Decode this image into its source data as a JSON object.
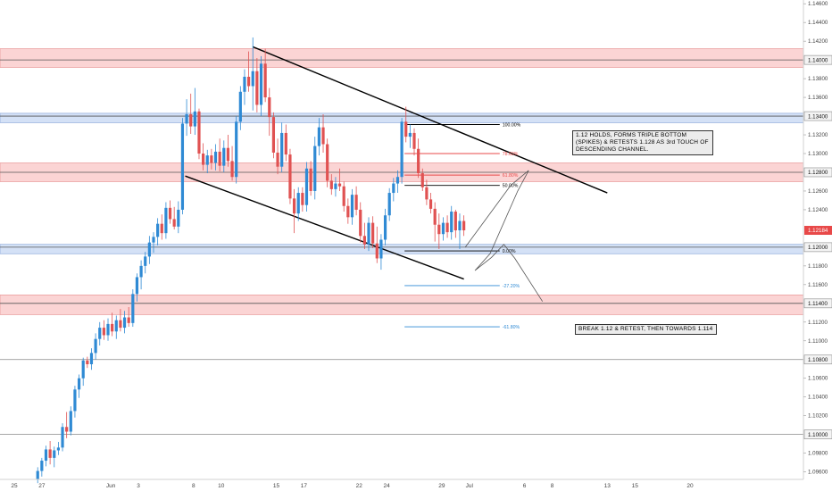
{
  "chart_data": {
    "type": "candlestick",
    "title": "",
    "symbol_price": "1.12184",
    "colors": {
      "up": "#2f8ad4",
      "down": "#e05252",
      "resistance_fill": "#fbd4d4",
      "resistance_line": "#e58a8a",
      "support_fill": "#d4e1f6",
      "support_line": "#7f9fd6",
      "fib_black": "#000000",
      "fib_red": "#e84848",
      "fib_blue": "#2f8ad4",
      "price_tag": "#e84848"
    },
    "y_axis": {
      "range": [
        1.0952,
        1.1464
      ],
      "tick_labels": [
        "1.14600",
        "1.14400",
        "1.14200",
        "1.13800",
        "1.13600",
        "1.13200",
        "1.13000",
        "1.12600",
        "1.12400",
        "1.11800",
        "1.11600",
        "1.11200",
        "1.11000",
        "1.10600",
        "1.10400",
        "1.10200",
        "1.09800",
        "1.09600"
      ],
      "tick_values": [
        1.146,
        1.144,
        1.142,
        1.138,
        1.136,
        1.132,
        1.13,
        1.126,
        1.124,
        1.118,
        1.116,
        1.112,
        1.11,
        1.106,
        1.104,
        1.102,
        1.098,
        1.096
      ],
      "highlight_labels": [
        "1.14000",
        "1.13400",
        "1.12800",
        "1.12000",
        "1.11400",
        "1.10800",
        "1.10000"
      ],
      "highlight_values": [
        1.14,
        1.134,
        1.128,
        1.12,
        1.114,
        1.108,
        1.1
      ]
    },
    "x_axis": {
      "labels": [
        "25",
        "27",
        "Jun",
        "3",
        "8",
        "10",
        "15",
        "17",
        "22",
        "24",
        "29",
        "Jul",
        "6",
        "8",
        "13",
        "15",
        "20"
      ],
      "positions_index": [
        -1,
        1,
        6,
        8,
        12,
        14,
        18,
        20,
        24,
        26,
        30,
        32,
        36,
        38,
        42,
        44,
        48
      ]
    },
    "zones": [
      {
        "kind": "resistance",
        "low": 1.1392,
        "high": 1.1412,
        "level": 1.14
      },
      {
        "kind": "support",
        "low": 1.1333,
        "high": 1.1343,
        "level": 1.134
      },
      {
        "kind": "resistance",
        "low": 1.127,
        "high": 1.129,
        "level": 1.128
      },
      {
        "kind": "support",
        "low": 1.1193,
        "high": 1.1203,
        "level": 1.12
      },
      {
        "kind": "resistance",
        "low": 1.1128,
        "high": 1.1149,
        "level": 1.114
      }
    ],
    "horizontal_lines": [
      1.108,
      1.1
    ],
    "candles": [
      {
        "x": 0.7,
        "o": 1.0952,
        "h": 1.0965,
        "l": 1.0948,
        "c": 1.0961
      },
      {
        "x": 1.0,
        "o": 1.0961,
        "h": 1.0975,
        "l": 1.0955,
        "c": 1.0972
      },
      {
        "x": 1.3,
        "o": 1.0972,
        "h": 1.0988,
        "l": 1.0966,
        "c": 1.0984
      },
      {
        "x": 1.6,
        "o": 1.0984,
        "h": 1.0993,
        "l": 1.0968,
        "c": 1.0975
      },
      {
        "x": 1.9,
        "o": 1.0975,
        "h": 1.0987,
        "l": 1.0965,
        "c": 1.0983
      },
      {
        "x": 2.2,
        "o": 1.0983,
        "h": 1.0992,
        "l": 1.0978,
        "c": 1.0986
      },
      {
        "x": 2.5,
        "o": 1.0986,
        "h": 1.1012,
        "l": 1.0982,
        "c": 1.1008
      },
      {
        "x": 2.8,
        "o": 1.1008,
        "h": 1.1024,
        "l": 1.0996,
        "c": 1.1003
      },
      {
        "x": 3.1,
        "o": 1.1003,
        "h": 1.103,
        "l": 1.0999,
        "c": 1.1025
      },
      {
        "x": 3.4,
        "o": 1.1025,
        "h": 1.1052,
        "l": 1.1018,
        "c": 1.1048
      },
      {
        "x": 3.7,
        "o": 1.1048,
        "h": 1.1064,
        "l": 1.1039,
        "c": 1.106
      },
      {
        "x": 4.0,
        "o": 1.106,
        "h": 1.1082,
        "l": 1.1052,
        "c": 1.1079
      },
      {
        "x": 4.3,
        "o": 1.1079,
        "h": 1.1083,
        "l": 1.1071,
        "c": 1.1075
      },
      {
        "x": 4.6,
        "o": 1.1075,
        "h": 1.1092,
        "l": 1.1069,
        "c": 1.1087
      },
      {
        "x": 4.9,
        "o": 1.1087,
        "h": 1.1108,
        "l": 1.108,
        "c": 1.1102
      },
      {
        "x": 5.2,
        "o": 1.1102,
        "h": 1.112,
        "l": 1.1095,
        "c": 1.1114
      },
      {
        "x": 5.5,
        "o": 1.1114,
        "h": 1.1122,
        "l": 1.1101,
        "c": 1.1106
      },
      {
        "x": 5.8,
        "o": 1.1106,
        "h": 1.1124,
        "l": 1.11,
        "c": 1.1118
      },
      {
        "x": 6.1,
        "o": 1.1118,
        "h": 1.113,
        "l": 1.1105,
        "c": 1.111
      },
      {
        "x": 6.4,
        "o": 1.111,
        "h": 1.1127,
        "l": 1.1102,
        "c": 1.1122
      },
      {
        "x": 6.7,
        "o": 1.1122,
        "h": 1.1134,
        "l": 1.111,
        "c": 1.1114
      },
      {
        "x": 7.0,
        "o": 1.1114,
        "h": 1.1132,
        "l": 1.1108,
        "c": 1.1125
      },
      {
        "x": 7.3,
        "o": 1.1125,
        "h": 1.1136,
        "l": 1.1115,
        "c": 1.1119
      },
      {
        "x": 7.6,
        "o": 1.1119,
        "h": 1.1155,
        "l": 1.1115,
        "c": 1.115
      },
      {
        "x": 7.9,
        "o": 1.115,
        "h": 1.1172,
        "l": 1.1142,
        "c": 1.1168
      },
      {
        "x": 8.2,
        "o": 1.1168,
        "h": 1.1186,
        "l": 1.1155,
        "c": 1.118
      },
      {
        "x": 8.5,
        "o": 1.118,
        "h": 1.1195,
        "l": 1.1172,
        "c": 1.119
      },
      {
        "x": 8.8,
        "o": 1.119,
        "h": 1.1212,
        "l": 1.1182,
        "c": 1.1205
      },
      {
        "x": 9.1,
        "o": 1.1205,
        "h": 1.1216,
        "l": 1.1194,
        "c": 1.1211
      },
      {
        "x": 9.4,
        "o": 1.1211,
        "h": 1.1231,
        "l": 1.1202,
        "c": 1.1225
      },
      {
        "x": 9.7,
        "o": 1.1225,
        "h": 1.1235,
        "l": 1.1208,
        "c": 1.1215
      },
      {
        "x": 10.0,
        "o": 1.1215,
        "h": 1.1248,
        "l": 1.1209,
        "c": 1.1242
      },
      {
        "x": 10.3,
        "o": 1.1242,
        "h": 1.125,
        "l": 1.1225,
        "c": 1.123
      },
      {
        "x": 10.6,
        "o": 1.123,
        "h": 1.1243,
        "l": 1.1219,
        "c": 1.1222
      },
      {
        "x": 10.9,
        "o": 1.1222,
        "h": 1.1249,
        "l": 1.1215,
        "c": 1.124
      },
      {
        "x": 11.2,
        "o": 1.124,
        "h": 1.1338,
        "l": 1.1235,
        "c": 1.1332
      },
      {
        "x": 11.5,
        "o": 1.1332,
        "h": 1.1358,
        "l": 1.1319,
        "c": 1.1342
      },
      {
        "x": 11.8,
        "o": 1.1342,
        "h": 1.1364,
        "l": 1.1321,
        "c": 1.1329
      },
      {
        "x": 12.1,
        "o": 1.1329,
        "h": 1.137,
        "l": 1.132,
        "c": 1.1345
      },
      {
        "x": 12.4,
        "o": 1.1345,
        "h": 1.1348,
        "l": 1.1294,
        "c": 1.13
      },
      {
        "x": 12.7,
        "o": 1.13,
        "h": 1.1311,
        "l": 1.1282,
        "c": 1.1288
      },
      {
        "x": 13.0,
        "o": 1.1288,
        "h": 1.1304,
        "l": 1.1279,
        "c": 1.1298
      },
      {
        "x": 13.3,
        "o": 1.1298,
        "h": 1.1305,
        "l": 1.1283,
        "c": 1.129
      },
      {
        "x": 13.6,
        "o": 1.129,
        "h": 1.131,
        "l": 1.1282,
        "c": 1.1302
      },
      {
        "x": 13.9,
        "o": 1.1302,
        "h": 1.1316,
        "l": 1.1281,
        "c": 1.1287
      },
      {
        "x": 14.2,
        "o": 1.1287,
        "h": 1.1314,
        "l": 1.128,
        "c": 1.1306
      },
      {
        "x": 14.5,
        "o": 1.1306,
        "h": 1.132,
        "l": 1.1286,
        "c": 1.1292
      },
      {
        "x": 14.8,
        "o": 1.1292,
        "h": 1.1308,
        "l": 1.1271,
        "c": 1.1275
      },
      {
        "x": 15.1,
        "o": 1.1275,
        "h": 1.134,
        "l": 1.1268,
        "c": 1.1334
      },
      {
        "x": 15.4,
        "o": 1.1334,
        "h": 1.1372,
        "l": 1.1325,
        "c": 1.1366
      },
      {
        "x": 15.7,
        "o": 1.1366,
        "h": 1.139,
        "l": 1.1352,
        "c": 1.1382
      },
      {
        "x": 16.0,
        "o": 1.1382,
        "h": 1.1409,
        "l": 1.1366,
        "c": 1.1372
      },
      {
        "x": 16.3,
        "o": 1.1372,
        "h": 1.1424,
        "l": 1.1346,
        "c": 1.1388
      },
      {
        "x": 16.6,
        "o": 1.1388,
        "h": 1.1402,
        "l": 1.1344,
        "c": 1.1352
      },
      {
        "x": 16.9,
        "o": 1.1352,
        "h": 1.1404,
        "l": 1.134,
        "c": 1.1396
      },
      {
        "x": 17.2,
        "o": 1.1396,
        "h": 1.1412,
        "l": 1.1355,
        "c": 1.136
      },
      {
        "x": 17.5,
        "o": 1.136,
        "h": 1.137,
        "l": 1.1319,
        "c": 1.1339
      },
      {
        "x": 17.8,
        "o": 1.1339,
        "h": 1.1344,
        "l": 1.1295,
        "c": 1.1301
      },
      {
        "x": 18.1,
        "o": 1.1301,
        "h": 1.1316,
        "l": 1.1278,
        "c": 1.1286
      },
      {
        "x": 18.4,
        "o": 1.1286,
        "h": 1.1333,
        "l": 1.128,
        "c": 1.1322
      },
      {
        "x": 18.7,
        "o": 1.1322,
        "h": 1.1331,
        "l": 1.1292,
        "c": 1.1299
      },
      {
        "x": 19.0,
        "o": 1.1299,
        "h": 1.1305,
        "l": 1.1246,
        "c": 1.1252
      },
      {
        "x": 19.3,
        "o": 1.1252,
        "h": 1.1262,
        "l": 1.1215,
        "c": 1.1236
      },
      {
        "x": 19.6,
        "o": 1.1236,
        "h": 1.1264,
        "l": 1.1228,
        "c": 1.1258
      },
      {
        "x": 19.9,
        "o": 1.1258,
        "h": 1.1264,
        "l": 1.1238,
        "c": 1.1245
      },
      {
        "x": 20.2,
        "o": 1.1245,
        "h": 1.1291,
        "l": 1.1238,
        "c": 1.1284
      },
      {
        "x": 20.5,
        "o": 1.1284,
        "h": 1.1292,
        "l": 1.1255,
        "c": 1.126
      },
      {
        "x": 20.8,
        "o": 1.126,
        "h": 1.1318,
        "l": 1.1251,
        "c": 1.1308
      },
      {
        "x": 21.1,
        "o": 1.1308,
        "h": 1.1338,
        "l": 1.1298,
        "c": 1.1328
      },
      {
        "x": 21.4,
        "o": 1.1328,
        "h": 1.1342,
        "l": 1.1301,
        "c": 1.131
      },
      {
        "x": 21.7,
        "o": 1.131,
        "h": 1.1316,
        "l": 1.1264,
        "c": 1.1271
      },
      {
        "x": 22.0,
        "o": 1.1271,
        "h": 1.1278,
        "l": 1.1256,
        "c": 1.1262
      },
      {
        "x": 22.3,
        "o": 1.1262,
        "h": 1.1275,
        "l": 1.1254,
        "c": 1.1268
      },
      {
        "x": 22.6,
        "o": 1.1268,
        "h": 1.1284,
        "l": 1.126,
        "c": 1.1265
      },
      {
        "x": 22.9,
        "o": 1.1265,
        "h": 1.127,
        "l": 1.1238,
        "c": 1.1244
      },
      {
        "x": 23.2,
        "o": 1.1244,
        "h": 1.1252,
        "l": 1.1225,
        "c": 1.1232
      },
      {
        "x": 23.5,
        "o": 1.1232,
        "h": 1.1262,
        "l": 1.1224,
        "c": 1.1256
      },
      {
        "x": 23.8,
        "o": 1.1256,
        "h": 1.1265,
        "l": 1.1234,
        "c": 1.124
      },
      {
        "x": 24.1,
        "o": 1.124,
        "h": 1.1248,
        "l": 1.1205,
        "c": 1.1212
      },
      {
        "x": 24.4,
        "o": 1.1212,
        "h": 1.1226,
        "l": 1.1198,
        "c": 1.1203
      },
      {
        "x": 24.7,
        "o": 1.1203,
        "h": 1.1232,
        "l": 1.1196,
        "c": 1.1226
      },
      {
        "x": 25.0,
        "o": 1.1226,
        "h": 1.1233,
        "l": 1.1199,
        "c": 1.1204
      },
      {
        "x": 25.3,
        "o": 1.1204,
        "h": 1.1222,
        "l": 1.1183,
        "c": 1.1188
      },
      {
        "x": 25.6,
        "o": 1.1188,
        "h": 1.1214,
        "l": 1.1176,
        "c": 1.1208
      },
      {
        "x": 25.9,
        "o": 1.1208,
        "h": 1.1241,
        "l": 1.1202,
        "c": 1.1234
      },
      {
        "x": 26.2,
        "o": 1.1234,
        "h": 1.1263,
        "l": 1.1228,
        "c": 1.1258
      },
      {
        "x": 26.5,
        "o": 1.1258,
        "h": 1.1274,
        "l": 1.1249,
        "c": 1.1268
      },
      {
        "x": 26.8,
        "o": 1.1268,
        "h": 1.1282,
        "l": 1.1258,
        "c": 1.1275
      },
      {
        "x": 27.1,
        "o": 1.1275,
        "h": 1.1338,
        "l": 1.1268,
        "c": 1.1334
      },
      {
        "x": 27.4,
        "o": 1.1334,
        "h": 1.135,
        "l": 1.1312,
        "c": 1.1318
      },
      {
        "x": 27.7,
        "o": 1.1318,
        "h": 1.1331,
        "l": 1.1306,
        "c": 1.1322
      },
      {
        "x": 28.0,
        "o": 1.1322,
        "h": 1.1327,
        "l": 1.1298,
        "c": 1.1305
      },
      {
        "x": 28.3,
        "o": 1.1305,
        "h": 1.1316,
        "l": 1.1274,
        "c": 1.1279
      },
      {
        "x": 28.6,
        "o": 1.1279,
        "h": 1.1284,
        "l": 1.126,
        "c": 1.1264
      },
      {
        "x": 28.9,
        "o": 1.1264,
        "h": 1.1272,
        "l": 1.1245,
        "c": 1.1251
      },
      {
        "x": 29.2,
        "o": 1.1251,
        "h": 1.1258,
        "l": 1.1236,
        "c": 1.1241
      },
      {
        "x": 29.5,
        "o": 1.1241,
        "h": 1.1248,
        "l": 1.1206,
        "c": 1.1224
      },
      {
        "x": 29.8,
        "o": 1.1224,
        "h": 1.1236,
        "l": 1.1198,
        "c": 1.1214
      },
      {
        "x": 30.1,
        "o": 1.1214,
        "h": 1.1232,
        "l": 1.1207,
        "c": 1.1226
      },
      {
        "x": 30.4,
        "o": 1.1226,
        "h": 1.1234,
        "l": 1.121,
        "c": 1.1216
      },
      {
        "x": 30.7,
        "o": 1.1216,
        "h": 1.1244,
        "l": 1.1208,
        "c": 1.1238
      },
      {
        "x": 31.0,
        "o": 1.1238,
        "h": 1.124,
        "l": 1.121,
        "c": 1.1218
      },
      {
        "x": 31.3,
        "o": 1.1218,
        "h": 1.1236,
        "l": 1.1198,
        "c": 1.1228
      },
      {
        "x": 31.6,
        "o": 1.1228,
        "h": 1.1234,
        "l": 1.1212,
        "c": 1.1218
      }
    ],
    "channel_lines": [
      {
        "from": [
          16.3,
          1.1414
        ],
        "to": [
          42.0,
          1.1258
        ]
      },
      {
        "from": [
          11.4,
          1.1276
        ],
        "to": [
          31.6,
          1.1166
        ]
      }
    ],
    "projection_path": [
      [
        31.7,
        1.12
      ],
      [
        35.0,
        1.1266
      ],
      [
        36.3,
        1.1282
      ],
      [
        35.5,
        1.126
      ],
      [
        33.5,
        1.1193
      ],
      [
        32.4,
        1.1175
      ],
      [
        33.6,
        1.1189
      ],
      [
        34.5,
        1.1203
      ],
      [
        35.3,
        1.1188
      ],
      [
        37.3,
        1.1142
      ]
    ],
    "fib_levels": [
      {
        "label": "100.00%",
        "price": 1.1331,
        "color": "fib_black"
      },
      {
        "label": "78.60%",
        "price": 1.13,
        "color": "fib_red"
      },
      {
        "label": "61.80%",
        "price": 1.1277,
        "color": "fib_red"
      },
      {
        "label": "50.00%",
        "price": 1.1266,
        "color": "fib_black"
      },
      {
        "label": "0.00%",
        "price": 1.1196,
        "color": "fib_black"
      },
      {
        "label": "-27.20%",
        "price": 1.1159,
        "color": "fib_blue"
      },
      {
        "label": "-61.80%",
        "price": 1.1115,
        "color": "fib_blue"
      }
    ],
    "annotations": [
      {
        "text": "1.12 HOLDS, FORMS TRIPLE BOTTOM (SPIKES) & RETESTS 1.128 AS 3rd TOUCH OF DESCENDING CHANNEL."
      },
      {
        "text": "BREAK 1.12 & RETEST, THEN TOWARDS 1.114"
      }
    ]
  }
}
